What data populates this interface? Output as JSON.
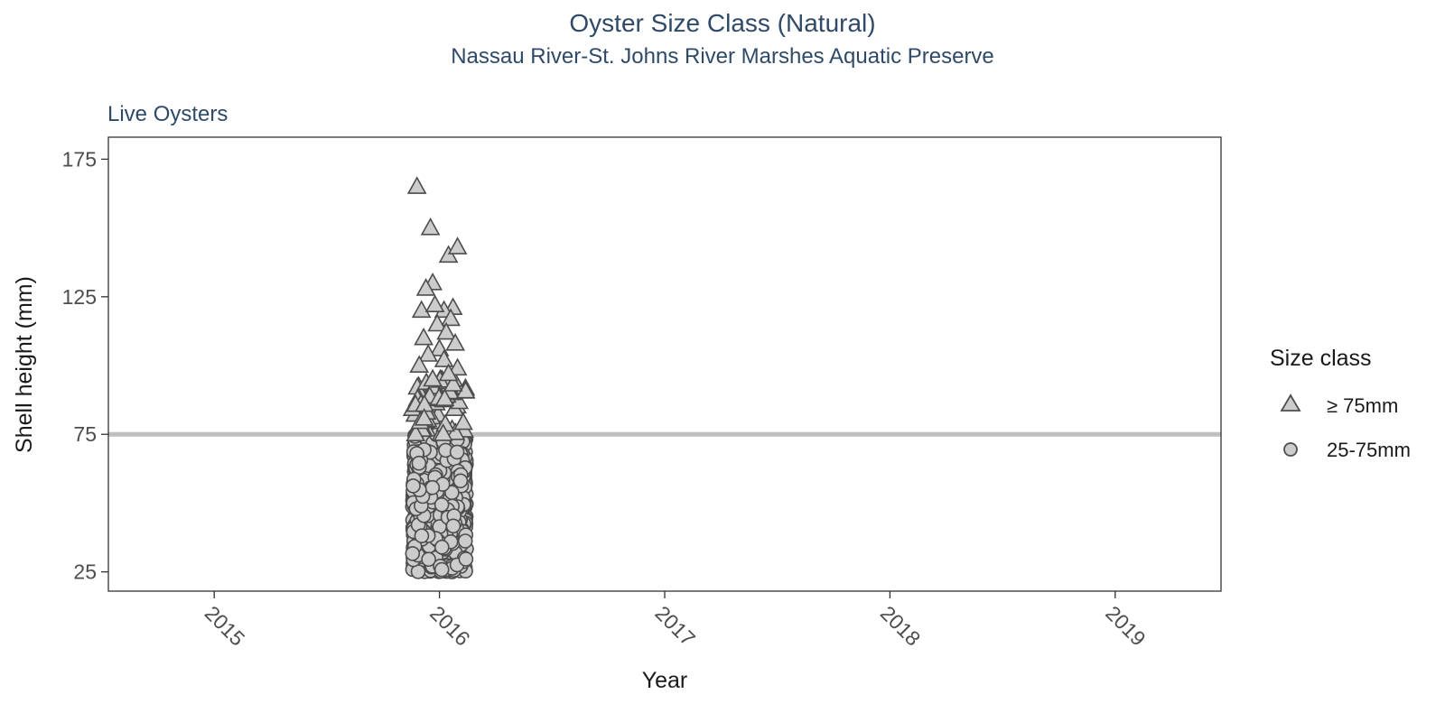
{
  "chart_data": {
    "type": "scatter",
    "title": "Oyster Size Class (Natural)",
    "subtitle": "Nassau River-St. Johns River Marshes Aquatic Preserve",
    "panel_label": "Live Oysters",
    "xlabel": "Year",
    "ylabel": "Shell height (mm)",
    "xlim": [
      2014.53,
      2019.47
    ],
    "ylim": [
      18,
      183
    ],
    "x_ticks": [
      2015,
      2016,
      2017,
      2018,
      2019
    ],
    "x_tick_labels": [
      "2015",
      "2016",
      "2017",
      "2018",
      "2019"
    ],
    "y_ticks": [
      25,
      75,
      125,
      175
    ],
    "y_tick_labels": [
      "25",
      "75",
      "125",
      "175"
    ],
    "reference_line": {
      "y": 75,
      "color": "#bfbfbf"
    },
    "grid": false,
    "legend": {
      "title": "Size class",
      "position": "right",
      "entries": [
        {
          "label": "≥ 75mm",
          "shape": "triangle"
        },
        {
          "label": "25-75mm",
          "shape": "circle"
        }
      ]
    },
    "marker_fill": "#cccccc",
    "marker_stroke": "#4d4d4d",
    "series": [
      {
        "name": "≥ 75mm",
        "shape": "triangle",
        "x_range": [
          2015.88,
          2016.12
        ],
        "points": [
          {
            "x": 2015.9,
            "y": 165
          },
          {
            "x": 2015.96,
            "y": 150
          },
          {
            "x": 2016.04,
            "y": 140
          },
          {
            "x": 2016.08,
            "y": 143
          },
          {
            "x": 2015.97,
            "y": 130
          },
          {
            "x": 2015.94,
            "y": 128
          },
          {
            "x": 2016.06,
            "y": 121
          },
          {
            "x": 2016.02,
            "y": 120
          },
          {
            "x": 2015.92,
            "y": 120
          },
          {
            "x": 2015.98,
            "y": 122
          },
          {
            "x": 2016.05,
            "y": 117
          },
          {
            "x": 2015.99,
            "y": 115
          },
          {
            "x": 2016.03,
            "y": 112
          },
          {
            "x": 2015.93,
            "y": 110
          },
          {
            "x": 2016.07,
            "y": 108
          },
          {
            "x": 2016.0,
            "y": 106
          },
          {
            "x": 2015.95,
            "y": 104
          },
          {
            "x": 2016.02,
            "y": 102
          },
          {
            "x": 2015.91,
            "y": 100
          },
          {
            "x": 2016.08,
            "y": 99
          },
          {
            "x": 2016.04,
            "y": 97
          },
          {
            "x": 2015.97,
            "y": 95
          }
        ],
        "dense_range": [
          75,
          95
        ],
        "count_dense": 70
      },
      {
        "name": "25-75mm",
        "shape": "circle",
        "x_range": [
          2015.88,
          2016.12
        ],
        "dense_range": [
          25,
          75
        ],
        "count_dense": 1000
      }
    ]
  }
}
